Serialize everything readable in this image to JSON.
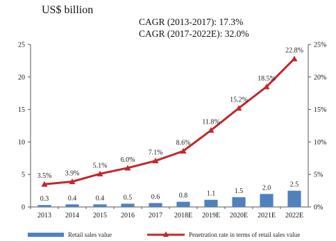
{
  "header": {
    "unit": "US$ billion",
    "cagr_1": "CAGR (2013-2017): 17.3%",
    "cagr_2": "CAGR (2017-2022E): 32.0%"
  },
  "colors": {
    "bar": "#4f81bd",
    "line": "#c0282a",
    "axis": "#555555"
  },
  "chart_data": {
    "type": "bar+line",
    "categories": [
      "2013",
      "2014",
      "2015",
      "2016",
      "2017",
      "2018E",
      "2019E",
      "2020E",
      "2021E",
      "2022E"
    ],
    "series": [
      {
        "name": "Retail sales value",
        "type": "bar",
        "axis": "left",
        "values": [
          0.3,
          0.4,
          0.4,
          0.5,
          0.6,
          0.8,
          1.1,
          1.5,
          2.0,
          2.5
        ],
        "labels": [
          "0.3",
          "0.4",
          "0.4",
          "0.5",
          "0.6",
          "0.8",
          "1.1",
          "1.5",
          "2.0",
          "2.5"
        ]
      },
      {
        "name": "Penetration rate in terms of retail sales value",
        "type": "line",
        "axis": "right",
        "values": [
          3.5,
          3.9,
          5.1,
          6.0,
          7.1,
          8.6,
          11.8,
          15.2,
          18.5,
          22.8
        ],
        "labels": [
          "3.5%",
          "3.9%",
          "5.1%",
          "6.0%",
          "7.1%",
          "8.6%",
          "11.8%",
          "15.2%",
          "18.5%",
          "22.8%"
        ]
      }
    ],
    "y_left": {
      "ticks": [
        "0",
        "5",
        "10",
        "15",
        "20",
        "25"
      ],
      "range": [
        0,
        25
      ]
    },
    "y_right": {
      "ticks": [
        "0%",
        "5%",
        "10%",
        "15%",
        "20%",
        "25%"
      ],
      "range": [
        0,
        25
      ]
    },
    "legend_position": "bottom"
  }
}
